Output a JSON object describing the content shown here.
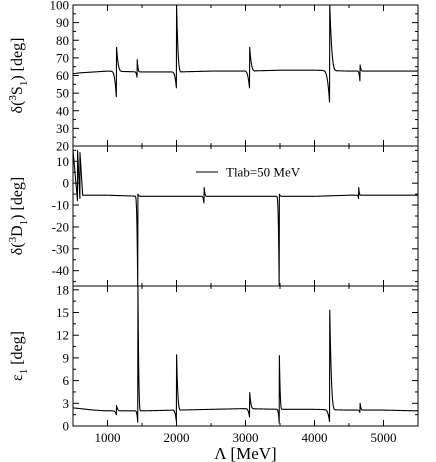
{
  "figure": {
    "xlabel": "Λ [MeV]",
    "x_tick_labels": [
      "1000",
      "2000",
      "3000",
      "4000",
      "5000"
    ],
    "legend": "Tlab=50 MeV"
  },
  "chart_data": [
    {
      "type": "line",
      "panel": "top",
      "ylabel_base": "δ(",
      "ylabel_sup": "3",
      "ylabel_mid": "S",
      "ylabel_sub": "1",
      "ylabel_end": ") [deg]",
      "xlim": [
        500,
        5500
      ],
      "ylim": [
        20,
        100
      ],
      "x_ticks": [
        1000,
        2000,
        3000,
        4000,
        5000
      ],
      "y_ticks": [
        20,
        30,
        40,
        50,
        60,
        70,
        80,
        90,
        100
      ],
      "y_tick_labels": [
        "20",
        "30",
        "40",
        "50",
        "60",
        "70",
        "80",
        "90",
        "100"
      ],
      "grid": false,
      "series": [
        {
          "name": "Tlab=50 MeV",
          "baseline": [
            [
              500,
              61
            ],
            [
              600,
              61.5
            ],
            [
              1000,
              62.5
            ],
            [
              1500,
              62
            ],
            [
              2000,
              62
            ],
            [
              2500,
              62.5
            ],
            [
              3000,
              62.5
            ],
            [
              3500,
              63
            ],
            [
              4000,
              63
            ],
            [
              4500,
              62.5
            ],
            [
              5000,
              62.5
            ],
            [
              5500,
              62.5
            ]
          ],
          "resonances": [
            {
              "x": 1130,
              "lo": 48,
              "hi": 76,
              "width": 80
            },
            {
              "x": 1430,
              "lo": 59,
              "hi": 69,
              "width": 40
            },
            {
              "x": 2000,
              "lo": 53,
              "hi": 100,
              "width": 70
            },
            {
              "x": 3060,
              "lo": 53,
              "hi": 76,
              "width": 80
            },
            {
              "x": 4220,
              "lo": 45,
              "hi": 100,
              "width": 100
            },
            {
              "x": 4660,
              "lo": 57,
              "hi": 66,
              "width": 40
            }
          ]
        }
      ]
    },
    {
      "type": "line",
      "panel": "middle",
      "ylabel_base": "δ(",
      "ylabel_sup": "3",
      "ylabel_mid": "D",
      "ylabel_sub": "1",
      "ylabel_end": ") [deg]",
      "xlim": [
        500,
        5500
      ],
      "ylim": [
        -47,
        17
      ],
      "x_ticks": [
        1000,
        2000,
        3000,
        4000,
        5000
      ],
      "y_ticks": [
        -40,
        -30,
        -20,
        -10,
        0,
        10
      ],
      "y_tick_labels": [
        "-40",
        "-30",
        "-20",
        "-10",
        "0",
        "10"
      ],
      "grid": false,
      "series": [
        {
          "name": "Tlab=50 MeV",
          "baseline": [
            [
              640,
              -5.5
            ],
            [
              1000,
              -5.5
            ],
            [
              1500,
              -6
            ],
            [
              2000,
              -6
            ],
            [
              2500,
              -6
            ],
            [
              3000,
              -6
            ],
            [
              3500,
              -6
            ],
            [
              4000,
              -6
            ],
            [
              4500,
              -5.5
            ],
            [
              5000,
              -5.5
            ],
            [
              5500,
              -5.5
            ]
          ],
          "early_spikes": [
            {
              "x": 565,
              "lo": -8,
              "hi": 15
            },
            {
              "x": 600,
              "lo": -7,
              "hi": 14
            }
          ],
          "resonances": [
            {
              "x": 1440,
              "lo": -47,
              "hi": -5,
              "width": 40
            },
            {
              "x": 2400,
              "lo": -9,
              "hi": -2,
              "width": 40
            },
            {
              "x": 3490,
              "lo": -47,
              "hi": -5,
              "width": 40
            },
            {
              "x": 4640,
              "lo": -7,
              "hi": -2,
              "width": 30
            }
          ]
        }
      ]
    },
    {
      "type": "line",
      "panel": "bottom",
      "ylabel_base": "ε",
      "ylabel_sub": "1",
      "ylabel_end": " [deg]",
      "xlim": [
        500,
        5500
      ],
      "ylim": [
        0,
        18.5
      ],
      "x_ticks": [
        1000,
        2000,
        3000,
        4000,
        5000
      ],
      "y_ticks": [
        0,
        3,
        6,
        9,
        12,
        15,
        18
      ],
      "y_tick_labels": [
        "0",
        "3",
        "6",
        "9",
        "12",
        "15",
        "18"
      ],
      "grid": false,
      "series": [
        {
          "name": "Tlab=50 MeV",
          "baseline": [
            [
              500,
              2.4
            ],
            [
              800,
              2.1
            ],
            [
              1000,
              2.0
            ],
            [
              1500,
              2.0
            ],
            [
              2000,
              2.1
            ],
            [
              2500,
              2.2
            ],
            [
              3000,
              2.3
            ],
            [
              3500,
              2.2
            ],
            [
              4000,
              2.2
            ],
            [
              4500,
              2.1
            ],
            [
              5000,
              2.1
            ],
            [
              5500,
              2.0
            ]
          ],
          "resonances": [
            {
              "x": 1130,
              "lo": 1.5,
              "hi": 2.7,
              "width": 60
            },
            {
              "x": 1440,
              "lo": 0.5,
              "hi": 18.5,
              "width": 40
            },
            {
              "x": 2000,
              "lo": 0.6,
              "hi": 9.4,
              "width": 60
            },
            {
              "x": 3060,
              "lo": 1.2,
              "hi": 4.4,
              "width": 60
            },
            {
              "x": 3490,
              "lo": 0.4,
              "hi": 9.3,
              "width": 40
            },
            {
              "x": 4220,
              "lo": 0.6,
              "hi": 15.3,
              "width": 80
            },
            {
              "x": 4660,
              "lo": 1.8,
              "hi": 3.0,
              "width": 40
            }
          ]
        }
      ]
    }
  ]
}
